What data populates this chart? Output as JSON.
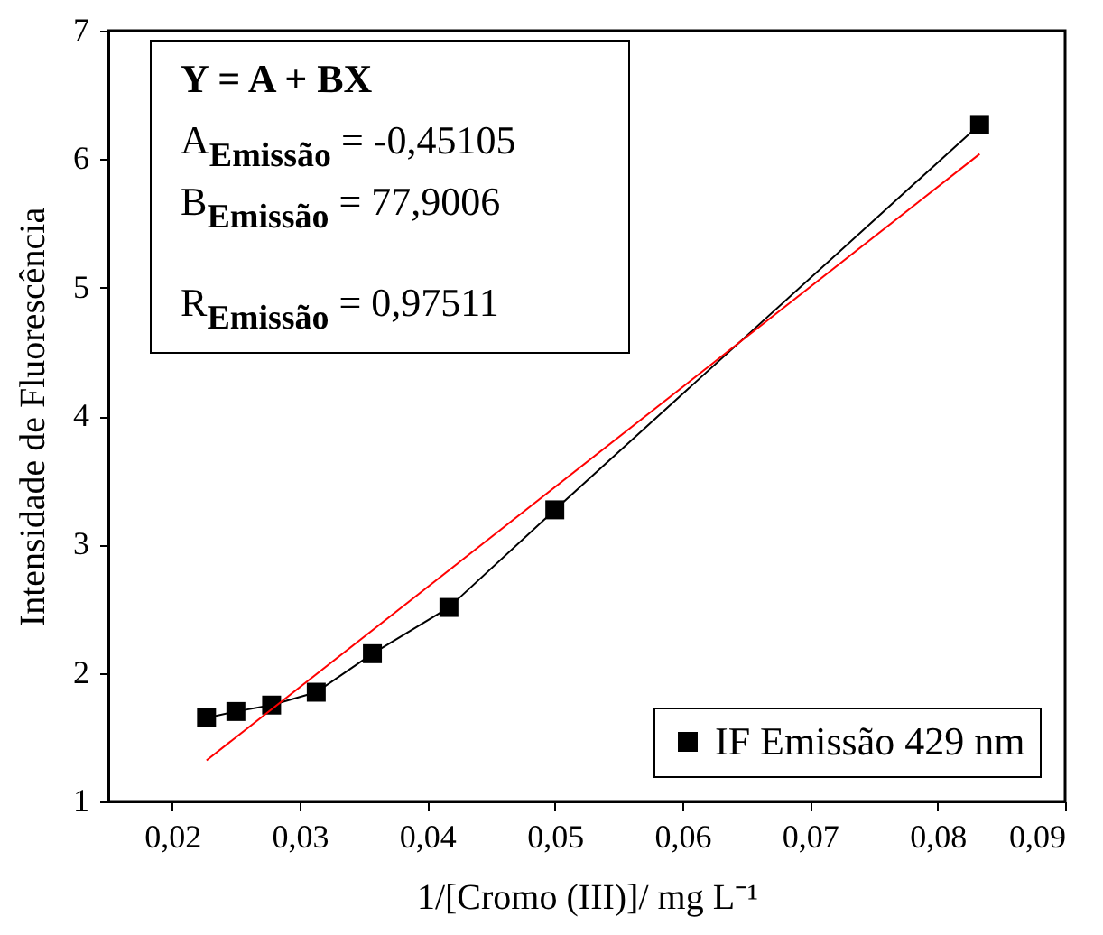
{
  "chart_data": {
    "type": "line",
    "xlabel": "1/[Cromo (III)]/ mg L⁻¹",
    "ylabel": "Intensidade de Fluorescência",
    "x": [
      0.0227,
      0.025,
      0.0278,
      0.0313,
      0.0357,
      0.0417,
      0.05,
      0.0833
    ],
    "series": [
      {
        "name": "IF Emissão 429 nm",
        "color": "#000000",
        "marker": "square",
        "values": [
          1.65,
          1.7,
          1.75,
          1.85,
          2.15,
          2.51,
          3.27,
          6.27
        ]
      },
      {
        "type": "line",
        "color": "#ff0000",
        "marker": "none",
        "x": [
          0.0227,
          0.0833
        ],
        "values": [
          1.32,
          6.04
        ]
      }
    ],
    "xlim": [
      0.015,
      0.09
    ],
    "xticks": [
      {
        "value": 0.02,
        "label": "0,02"
      },
      {
        "value": 0.03,
        "label": "0,03"
      },
      {
        "value": 0.04,
        "label": "0,04"
      },
      {
        "value": 0.05,
        "label": "0,05"
      },
      {
        "value": 0.06,
        "label": "0,06"
      },
      {
        "value": 0.07,
        "label": "0,07"
      },
      {
        "value": 0.08,
        "label": "0,08"
      },
      {
        "value": 0.09,
        "label": "0,09"
      }
    ],
    "ylim": [
      1,
      7
    ],
    "yticks": [
      1,
      2,
      3,
      4,
      5,
      6,
      7
    ],
    "grid": false,
    "legend": "bottom right",
    "annotations": [
      "Y = A + BX",
      "A$_{Emissão}$ = -0,45105",
      "B$_{Emissão}$ = 77,9006",
      "R$_{Emissão}$ = 0,97511"
    ]
  }
}
